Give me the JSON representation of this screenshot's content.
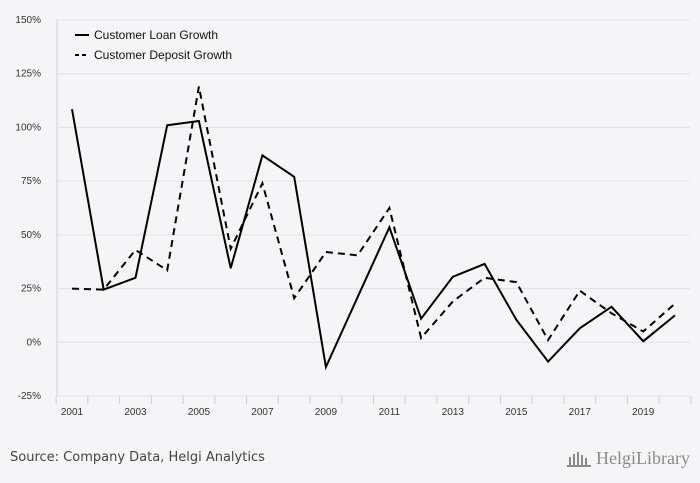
{
  "chart_data": {
    "type": "line",
    "title": "",
    "xlabel": "",
    "ylabel": "",
    "x": [
      2001,
      2002,
      2003,
      2004,
      2005,
      2006,
      2007,
      2008,
      2009,
      2010,
      2011,
      2012,
      2013,
      2014,
      2015,
      2016,
      2017,
      2018,
      2019,
      2020
    ],
    "x_tick_labels": [
      "2001",
      "2003",
      "2005",
      "2007",
      "2009",
      "2011",
      "2013",
      "2015",
      "2017",
      "2019"
    ],
    "y_tick_labels": [
      "150%",
      "125%",
      "100%",
      "75%",
      "50%",
      "25%",
      "0%",
      "-25%"
    ],
    "ylim": [
      -25,
      150
    ],
    "y_unit": "%",
    "grid": "horizontal",
    "legend_position": "top-left",
    "series": [
      {
        "name": "Customer Loan Growth",
        "style": "solid",
        "color": "#000000",
        "values": [
          108.5,
          24.5,
          30,
          101,
          103,
          34.5,
          87,
          77,
          -11.5,
          21,
          53.5,
          11,
          30.5,
          36.5,
          10.5,
          -9,
          6.5,
          16.5,
          0.5,
          12.5
        ]
      },
      {
        "name": "Customer Deposit Growth",
        "style": "dashed",
        "color": "#000000",
        "values": [
          25,
          24.5,
          43,
          33.5,
          119,
          43.5,
          74,
          20.5,
          42,
          40.5,
          62.5,
          2,
          19,
          30,
          28,
          1,
          24,
          13.5,
          5,
          18
        ]
      }
    ]
  },
  "footer": {
    "source": "Source: Company Data, Helgi Analytics",
    "brand": "HelgiLibrary"
  }
}
